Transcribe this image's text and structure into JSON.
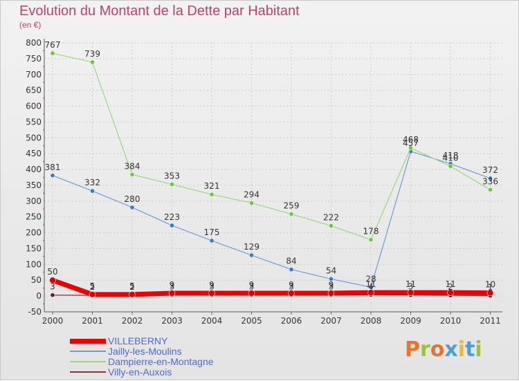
{
  "title": "Evolution du Montant de la Dette par Habitant",
  "subtitle": "(en €)",
  "logo": {
    "text": "Proxiti",
    "colors": [
      "#e8732c",
      "#9ac23c",
      "#e8732c",
      "#4aa0d8",
      "#e8b838",
      "#4aa0d8",
      "#9ac23c"
    ]
  },
  "chart_data": {
    "type": "line",
    "x": [
      "2000",
      "2001",
      "2002",
      "2003",
      "2004",
      "2005",
      "2006",
      "2007",
      "2008",
      "2009",
      "2010",
      "2011"
    ],
    "ylim": [
      -50,
      800
    ],
    "yticks": [
      "-50",
      "0",
      "50",
      "100",
      "150",
      "200",
      "250",
      "300",
      "350",
      "400",
      "450",
      "500",
      "550",
      "600",
      "650",
      "700",
      "750",
      "800"
    ],
    "grid": true,
    "legend_position": "bottom-left",
    "series": [
      {
        "name": "Jailly-les-Moulins",
        "color": "#6f9cd2",
        "marker": "#3a78c8",
        "width": 1.2,
        "values": [
          381,
          332,
          280,
          223,
          175,
          129,
          84,
          54,
          28,
          457,
          418,
          372
        ],
        "labels": [
          "381",
          "332",
          "280",
          "223",
          "175",
          "129",
          "84",
          "54",
          "28",
          "457",
          "418",
          "372"
        ]
      },
      {
        "name": "Dampierre-en-Montagne",
        "color": "#9ad87a",
        "marker": "#6cc83a",
        "width": 1.2,
        "values": [
          767,
          739,
          384,
          353,
          321,
          294,
          259,
          222,
          178,
          468,
          410,
          336
        ],
        "labels": [
          "767",
          "739",
          "384",
          "353",
          "321",
          "294",
          "259",
          "222",
          "178",
          "468",
          "410",
          "336"
        ]
      },
      {
        "name": "Villy-en-Auxois",
        "color": "#7a3a3a",
        "marker": "#5a2020",
        "width": 1.2,
        "values": [
          3,
          2,
          2,
          3,
          3,
          3,
          3,
          3,
          4,
          3,
          2,
          1
        ],
        "labels": [
          "3",
          "2",
          "2",
          "3",
          "3",
          "3",
          "3",
          "3",
          "4",
          "3",
          "2",
          "1"
        ]
      },
      {
        "name": "VILLEBERNY",
        "color": "#ee0000",
        "marker": "#dd0000",
        "width": 7,
        "values": [
          50,
          5,
          5,
          9,
          9,
          9,
          9,
          9,
          11,
          11,
          11,
          10
        ],
        "labels": [
          "50",
          "5",
          "5",
          "9",
          "9",
          "9",
          "9",
          "9",
          "11",
          "11",
          "11",
          "10"
        ]
      }
    ],
    "legend": [
      "VILLEBERNY",
      "Jailly-les-Moulins",
      "Dampierre-en-Montagne",
      "Villy-en-Auxois"
    ]
  }
}
